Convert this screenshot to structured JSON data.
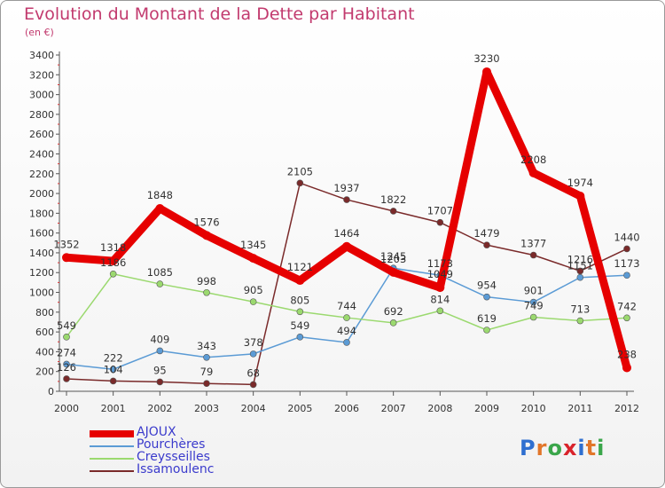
{
  "header": {
    "title": "Evolution du Montant de la Dette par Habitant",
    "subtitle": "(en €)"
  },
  "logo": {
    "text": "Proxiti",
    "colors": [
      "#2f6fd0",
      "#e2762a",
      "#3aa64a",
      "#d9232b",
      "#2f6fd0",
      "#e2762a",
      "#3aa64a"
    ]
  },
  "chart_data": {
    "type": "line",
    "title": "Evolution du Montant de la Dette par Habitant",
    "subtitle": "(en €)",
    "xlabel": "",
    "ylabel": "",
    "x": [
      "2000",
      "2001",
      "2002",
      "2003",
      "2004",
      "2005",
      "2006",
      "2007",
      "2008",
      "2009",
      "2010",
      "2011",
      "2012"
    ],
    "ylim": [
      0,
      3400
    ],
    "yticks": [
      0,
      200,
      400,
      600,
      800,
      1000,
      1200,
      1400,
      1600,
      1800,
      2000,
      2200,
      2400,
      2600,
      2800,
      3000,
      3200,
      3400
    ],
    "grid": false,
    "legend_position": "bottom-left",
    "series": [
      {
        "name": "AJOUX",
        "color": "#e60000",
        "values": [
          1352,
          1318,
          1848,
          1576,
          1345,
          1121,
          1464,
          1203,
          1049,
          3230,
          2208,
          1974,
          238
        ]
      },
      {
        "name": "Pourchères",
        "color": "#5b9bd5",
        "values": [
          274,
          222,
          409,
          343,
          378,
          549,
          494,
          1245,
          1173,
          954,
          901,
          1151,
          1173
        ]
      },
      {
        "name": "Creysseilles",
        "color": "#9bd96f",
        "values": [
          549,
          1186,
          1085,
          998,
          905,
          805,
          744,
          692,
          814,
          619,
          749,
          713,
          742
        ]
      },
      {
        "name": "Issamoulenc",
        "color": "#7a2a2a",
        "values": [
          126,
          104,
          95,
          79,
          68,
          2105,
          1937,
          1822,
          1707,
          1479,
          1377,
          1216,
          1440
        ]
      }
    ]
  }
}
